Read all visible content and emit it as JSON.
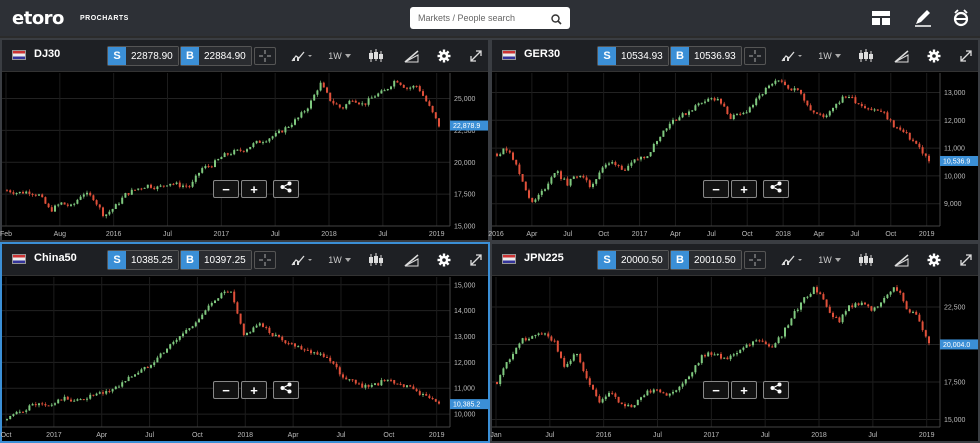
{
  "app": {
    "logo_text": "etoro",
    "logo_sub": "PROCHARTS",
    "search_placeholder": "Markets / People search"
  },
  "colors": {
    "accent": "#3b8fd6",
    "up": "#7fc97f",
    "down": "#e0503a",
    "topbar": "#2d3036"
  },
  "toolbar_icons": [
    "layout-icon",
    "pencil-icon",
    "etoro-e-icon"
  ],
  "panels": [
    {
      "symbol": "DJ30",
      "sell_label": "S",
      "sell": "22878.90",
      "buy_label": "B",
      "buy": "22884.90",
      "timeframe": "1W",
      "price_tag": "22,878.9",
      "active": false,
      "chart_data": {
        "type": "candlestick",
        "x_ticks": [
          "Feb",
          "Aug",
          "2016",
          "Jul",
          "2017",
          "Jul",
          "2018",
          "Jul",
          "2019"
        ],
        "y_ticks": [
          "25,000",
          "22,500",
          "20,000",
          "17,500",
          "15,000"
        ],
        "ylim": [
          15000,
          27000
        ],
        "path": [
          17800,
          17600,
          17700,
          17400,
          16200,
          16800,
          16500,
          17600,
          17200,
          15800,
          16500,
          17500,
          17900,
          18200,
          18000,
          18400,
          18200,
          18100,
          19500,
          19800,
          20500,
          20800,
          21000,
          21500,
          21800,
          22200,
          22800,
          23500,
          24500,
          26200,
          24800,
          24200,
          25000,
          24500,
          25200,
          25600,
          26500,
          25800,
          26000,
          24500,
          22879
        ]
      }
    },
    {
      "symbol": "GER30",
      "sell_label": "S",
      "sell": "10534.93",
      "buy_label": "B",
      "buy": "10536.93",
      "timeframe": "1W",
      "price_tag": "10,536.9",
      "active": false,
      "chart_data": {
        "type": "candlestick",
        "x_ticks": [
          "2016",
          "Apr",
          "Jul",
          "Oct",
          "2017",
          "Apr",
          "Jul",
          "Oct",
          "2018",
          "Apr",
          "Jul",
          "Oct",
          "2019"
        ],
        "y_ticks": [
          "13,000",
          "12,000",
          "11,000",
          "10,000",
          "9,000"
        ],
        "ylim": [
          8200,
          13700
        ],
        "path": [
          10800,
          11000,
          10000,
          9000,
          9500,
          10200,
          9700,
          10100,
          9600,
          10300,
          10500,
          10200,
          10600,
          10800,
          11500,
          12000,
          12200,
          12500,
          12800,
          12700,
          12100,
          12200,
          12600,
          13100,
          13400,
          13200,
          13000,
          12300,
          12100,
          12600,
          12900,
          12600,
          12400,
          12300,
          11800,
          11500,
          11100,
          10537
        ]
      }
    },
    {
      "symbol": "China50",
      "sell_label": "S",
      "sell": "10385.25",
      "buy_label": "B",
      "buy": "10397.25",
      "timeframe": "1W",
      "price_tag": "10,385.2",
      "active": true,
      "chart_data": {
        "type": "candlestick",
        "x_ticks": [
          "Oct",
          "2017",
          "Apr",
          "Jul",
          "Oct",
          "2018",
          "Apr",
          "Jul",
          "Oct",
          "2019"
        ],
        "y_ticks": [
          "15,000",
          "14,000",
          "13,000",
          "12,000",
          "11,000",
          "10,000"
        ],
        "ylim": [
          9500,
          15300
        ],
        "path": [
          9800,
          10100,
          10400,
          10300,
          10600,
          10500,
          10700,
          10800,
          11100,
          11500,
          11800,
          12300,
          12800,
          13300,
          13800,
          14500,
          14800,
          13000,
          13500,
          13100,
          12800,
          12600,
          12400,
          12200,
          11500,
          11200,
          11000,
          11300,
          11200,
          11000,
          10700,
          10385
        ]
      }
    },
    {
      "symbol": "JPN225",
      "sell_label": "S",
      "sell": "20000.50",
      "buy_label": "B",
      "buy": "20010.50",
      "timeframe": "1W",
      "price_tag": "20,004.0",
      "active": false,
      "chart_data": {
        "type": "candlestick",
        "x_ticks": [
          "Jan",
          "Jul",
          "2016",
          "Jul",
          "2017",
          "Jul",
          "2018",
          "Jul",
          "2019"
        ],
        "y_ticks": [
          "22,500",
          "20,000",
          "17,500",
          "15,000"
        ],
        "ylim": [
          14500,
          24500
        ],
        "path": [
          17500,
          19000,
          20200,
          20500,
          20800,
          20300,
          18500,
          19500,
          17500,
          16200,
          16800,
          16000,
          15800,
          16800,
          17000,
          16500,
          17200,
          18000,
          19200,
          19500,
          19000,
          19400,
          20000,
          20200,
          19800,
          20500,
          22000,
          23000,
          23800,
          22500,
          21500,
          22500,
          22800,
          22300,
          23000,
          24000,
          22500,
          21800,
          20004
        ]
      }
    }
  ]
}
